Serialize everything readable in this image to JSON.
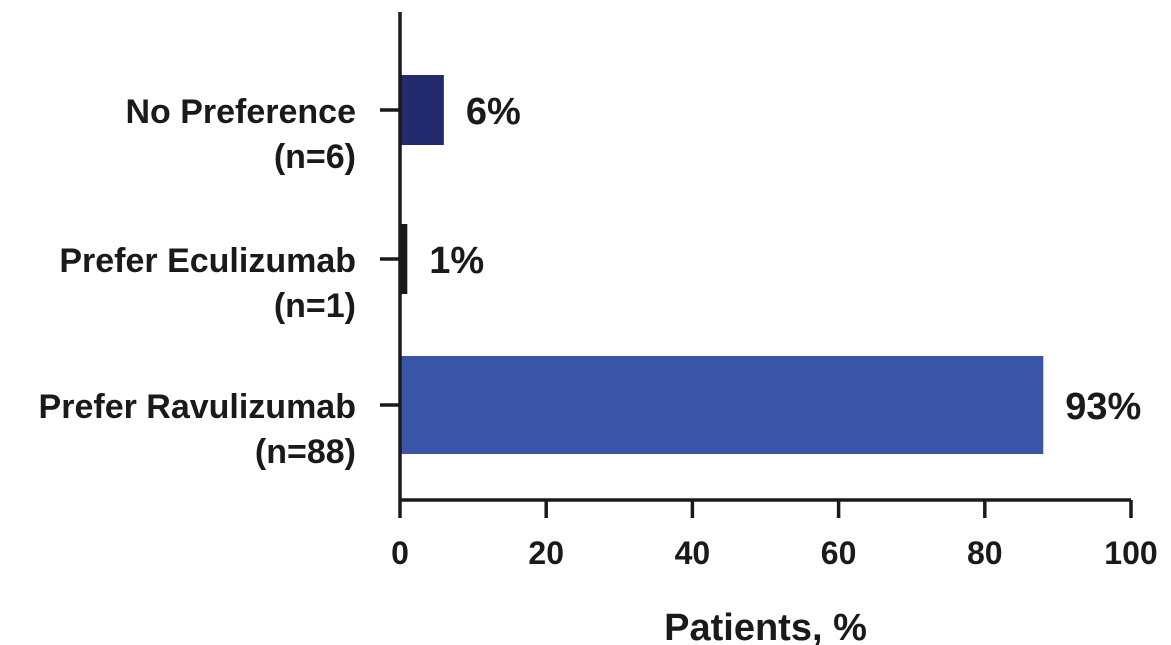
{
  "chart_data": {
    "type": "bar",
    "orientation": "horizontal",
    "title": "",
    "xlabel": "Patients, %",
    "ylabel": "",
    "xlim": [
      0,
      100
    ],
    "xticks": [
      0,
      20,
      40,
      60,
      80,
      100
    ],
    "grid": false,
    "legend": "none",
    "categories": [
      {
        "line1": "No Preference",
        "line2": "(n=6)"
      },
      {
        "line1": "Prefer Eculizumab",
        "line2": "(n=1)"
      },
      {
        "line1": "Prefer Ravulizumab",
        "line2": "(n=88)"
      }
    ],
    "values": [
      6,
      1,
      88
    ],
    "value_labels": [
      "6%",
      "1%",
      "93%"
    ],
    "colors": [
      "#242a6e",
      "#1a1a1a",
      "#3a55a7"
    ]
  }
}
